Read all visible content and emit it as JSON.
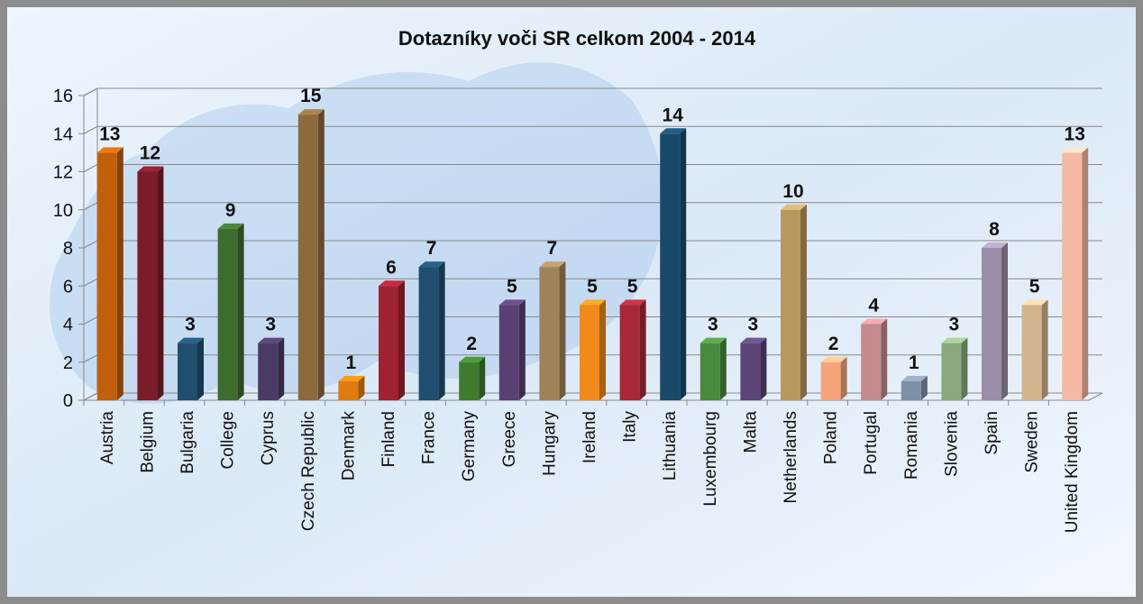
{
  "chart_data": {
    "type": "bar3d",
    "title": "Dotazníky voči SR celkom 2004 - 2014",
    "categories": [
      "Austria",
      "Belgium",
      "Bulgaria",
      "College",
      "Cyprus",
      "Czech Republic",
      "Denmark",
      "Finland",
      "France",
      "Germany",
      "Greece",
      "Hungary",
      "Ireland",
      "Italy",
      "Lithuania",
      "Luxembourg",
      "Malta",
      "Netherlands",
      "Poland",
      "Portugal",
      "Romania",
      "Slovenia",
      "Spain",
      "Sweden",
      "United Kingdom"
    ],
    "values": [
      13,
      12,
      3,
      9,
      3,
      15,
      1,
      6,
      7,
      2,
      5,
      7,
      5,
      5,
      14,
      3,
      3,
      10,
      2,
      4,
      1,
      3,
      8,
      5,
      13
    ],
    "colors": [
      "#c0600a",
      "#7b1c2a",
      "#1f4e6e",
      "#3e6b2e",
      "#4b3a63",
      "#8c6a3e",
      "#e07b10",
      "#9e2230",
      "#1f4e6e",
      "#3e7b2e",
      "#5a4072",
      "#a0825a",
      "#f08a1a",
      "#a82838",
      "#1a4a6a",
      "#4a8a3e",
      "#5a4576",
      "#b8985f",
      "#f4a67a",
      "#c48a8e",
      "#7f8fa6",
      "#8aaa7e",
      "#9a8ea8",
      "#d4b48e",
      "#f4baa4"
    ],
    "ylim": [
      0,
      16
    ],
    "yticks": [
      0,
      2,
      4,
      6,
      8,
      10,
      12,
      14,
      16
    ],
    "grid": true
  }
}
